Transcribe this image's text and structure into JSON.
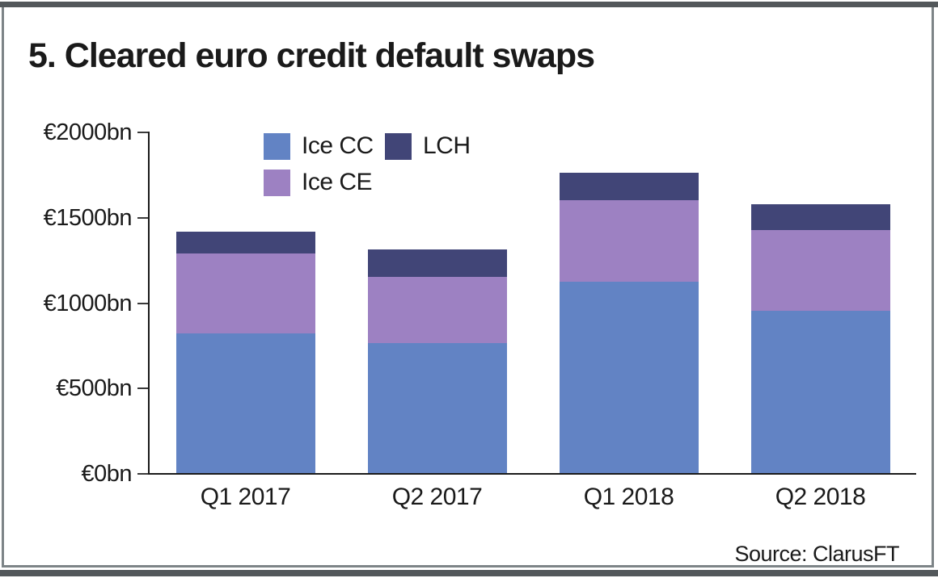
{
  "title": "5. Cleared euro credit default swaps",
  "source": "Source: ClarusFT",
  "colors": {
    "ice_cc": "#6283C4",
    "ice_ce": "#9D81C2",
    "lch": "#414577",
    "axis": "#1a1a1a",
    "frame_border": "#7d8487",
    "heavy_rule": "#53585b",
    "background": "#ffffff"
  },
  "chart_data": {
    "type": "bar",
    "stacked": true,
    "title": "5. Cleared euro credit default swaps",
    "categories": [
      "Q1 2017",
      "Q2 2017",
      "Q1 2018",
      "Q2 2018"
    ],
    "series": [
      {
        "name": "Ice CC",
        "color": "#6283C4",
        "values": [
          820,
          760,
          1120,
          950
        ]
      },
      {
        "name": "Ice CE",
        "color": "#9D81C2",
        "values": [
          465,
          390,
          480,
          475
        ]
      },
      {
        "name": "LCH",
        "color": "#414577",
        "values": [
          130,
          160,
          160,
          150
        ]
      }
    ],
    "xlabel": "",
    "ylabel": "",
    "ylim": [
      0,
      2000
    ],
    "yticks": [
      0,
      500,
      1000,
      1500,
      2000
    ],
    "ytick_labels": [
      "€0bn",
      "€500bn",
      "€1000bn",
      "€1500bn",
      "€2000bn"
    ],
    "grid": false,
    "legend_position": "top-inside",
    "legend_order": [
      "Ice CC",
      "LCH",
      "Ice CE"
    ],
    "source_label": "Source: ClarusFT"
  }
}
